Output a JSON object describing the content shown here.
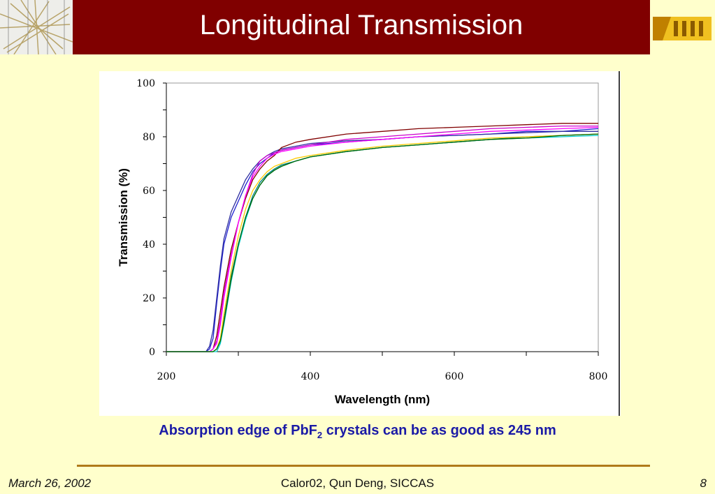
{
  "slide": {
    "title": "Longitudinal Transmission",
    "caption_prefix": "Absorption edge of PbF",
    "caption_subscript": "2",
    "caption_suffix": " crystals can be as good as 245 nm",
    "footer_date": "March 26, 2002",
    "footer_center": "Calor02, Qun Deng, SICCAS",
    "footer_page": "8"
  },
  "chart_data": {
    "type": "line",
    "xlabel": "Wavelength (nm)",
    "ylabel": "Transmission (%)",
    "xlim": [
      200,
      800
    ],
    "ylim": [
      0,
      100
    ],
    "xticks": [
      200,
      400,
      600,
      800
    ],
    "yticks": [
      0,
      20,
      40,
      60,
      80,
      100
    ],
    "grid": false,
    "series": [
      {
        "color": "#1f1fd0",
        "x": [
          200,
          250,
          255,
          260,
          265,
          270,
          275,
          280,
          290,
          300,
          310,
          320,
          330,
          340,
          350,
          360,
          380,
          400,
          450,
          500,
          550,
          600,
          650,
          700,
          750,
          800
        ],
        "y": [
          0,
          0,
          0,
          1,
          5,
          18,
          30,
          40,
          50,
          56,
          62,
          67,
          70,
          72,
          74,
          75,
          76,
          77,
          78,
          79,
          80,
          80.5,
          81,
          82,
          82,
          83
        ]
      },
      {
        "color": "#3030a0",
        "x": [
          200,
          250,
          255,
          260,
          265,
          270,
          275,
          280,
          290,
          300,
          310,
          320,
          330,
          340,
          350,
          360,
          380,
          400,
          450,
          500,
          550,
          600,
          650,
          700,
          750,
          800
        ],
        "y": [
          0,
          0,
          0,
          2,
          8,
          20,
          32,
          42,
          52,
          58,
          64,
          68,
          71,
          73,
          74.5,
          75.5,
          76.5,
          77.5,
          78.5,
          79,
          80,
          80.5,
          81,
          81.5,
          82,
          82
        ]
      },
      {
        "color": "#800000",
        "x": [
          200,
          255,
          260,
          265,
          270,
          275,
          280,
          290,
          300,
          310,
          320,
          330,
          340,
          350,
          360,
          380,
          400,
          450,
          500,
          550,
          600,
          650,
          700,
          750,
          800
        ],
        "y": [
          0,
          0,
          0,
          1,
          6,
          15,
          24,
          38,
          48,
          57,
          64,
          68,
          71,
          73,
          76,
          78,
          79,
          81,
          82,
          83,
          83.5,
          84,
          84.5,
          85,
          85
        ]
      },
      {
        "color": "#cc00cc",
        "x": [
          200,
          255,
          260,
          265,
          270,
          275,
          280,
          290,
          300,
          310,
          320,
          330,
          340,
          350,
          360,
          380,
          400,
          450,
          500,
          550,
          600,
          650,
          700,
          750,
          800
        ],
        "y": [
          0,
          0,
          0,
          1,
          4,
          12,
          22,
          36,
          48,
          58,
          66,
          71,
          73,
          74,
          75,
          76,
          77,
          79,
          80,
          81,
          82,
          83,
          83.5,
          84,
          84
        ]
      },
      {
        "color": "#ff00ff",
        "x": [
          200,
          255,
          260,
          265,
          270,
          275,
          280,
          290,
          300,
          310,
          320,
          330,
          340,
          350,
          360,
          380,
          400,
          450,
          500,
          550,
          600,
          650,
          700,
          750,
          800
        ],
        "y": [
          0,
          0,
          0,
          1,
          3,
          10,
          20,
          35,
          48,
          58,
          65,
          69,
          72,
          73.5,
          74.5,
          75.5,
          76.5,
          78,
          79,
          80,
          81,
          82,
          82.5,
          83,
          83.5
        ]
      },
      {
        "color": "#008080",
        "x": [
          200,
          255,
          260,
          265,
          270,
          275,
          280,
          290,
          300,
          310,
          320,
          330,
          340,
          350,
          360,
          380,
          400,
          450,
          500,
          550,
          600,
          650,
          700,
          750,
          800
        ],
        "y": [
          0,
          0,
          0,
          0,
          1,
          4,
          12,
          28,
          40,
          50,
          58,
          63,
          66,
          68,
          69.5,
          71,
          72.5,
          74.5,
          76,
          77,
          78,
          79,
          80,
          80.5,
          81
        ]
      },
      {
        "color": "#ffcc00",
        "x": [
          200,
          255,
          260,
          265,
          270,
          275,
          280,
          290,
          300,
          310,
          320,
          330,
          340,
          350,
          360,
          380,
          400,
          450,
          500,
          550,
          600,
          650,
          700,
          750,
          800
        ],
        "y": [
          0,
          0,
          0,
          0,
          1,
          5,
          14,
          30,
          43,
          53,
          60,
          64,
          67,
          69,
          70,
          72,
          73,
          75,
          76.5,
          77.5,
          78.5,
          79.5,
          80,
          80.5,
          81
        ]
      },
      {
        "color": "#00cccc",
        "x": [
          200,
          255,
          260,
          265,
          270,
          275,
          280,
          290,
          300,
          310,
          320,
          330,
          340,
          350,
          360,
          380,
          400,
          450,
          500,
          550,
          600,
          650,
          700,
          750,
          800
        ],
        "y": [
          0,
          0,
          0,
          0,
          0,
          3,
          10,
          26,
          39,
          49,
          57,
          62,
          65.5,
          67.5,
          69,
          71,
          72.5,
          74.5,
          76,
          77,
          78,
          79,
          79.5,
          80,
          80.5
        ]
      },
      {
        "color": "#006600",
        "x": [
          200,
          255,
          260,
          265,
          270,
          275,
          280,
          290,
          300,
          310,
          320,
          330,
          340,
          350,
          360,
          380,
          400,
          450,
          500,
          550,
          600,
          650,
          700,
          750,
          800
        ],
        "y": [
          0,
          0,
          0,
          0,
          1,
          4,
          11,
          27,
          40,
          50,
          57,
          62,
          65.5,
          67.5,
          69,
          71,
          72.5,
          74.5,
          76,
          77,
          78,
          79,
          79.5,
          80.5,
          81
        ]
      }
    ]
  }
}
